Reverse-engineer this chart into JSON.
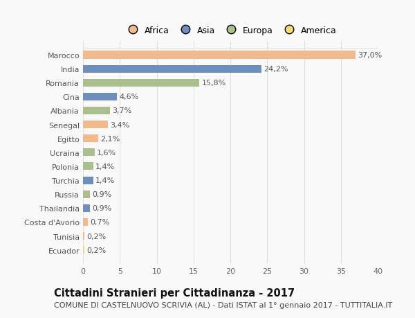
{
  "countries": [
    "Marocco",
    "India",
    "Romania",
    "Cina",
    "Albania",
    "Senegal",
    "Egitto",
    "Ucraina",
    "Polonia",
    "Turchia",
    "Russia",
    "Thailandia",
    "Costa d'Avorio",
    "Tunisia",
    "Ecuador"
  ],
  "values": [
    37.0,
    24.2,
    15.8,
    4.6,
    3.7,
    3.4,
    2.1,
    1.6,
    1.4,
    1.4,
    0.9,
    0.9,
    0.7,
    0.2,
    0.2
  ],
  "labels": [
    "37,0%",
    "24,2%",
    "15,8%",
    "4,6%",
    "3,7%",
    "3,4%",
    "2,1%",
    "1,6%",
    "1,4%",
    "1,4%",
    "0,9%",
    "0,9%",
    "0,7%",
    "0,2%",
    "0,2%"
  ],
  "continents": [
    "Africa",
    "Asia",
    "Europa",
    "Asia",
    "Europa",
    "Africa",
    "Africa",
    "Europa",
    "Europa",
    "Asia",
    "Europa",
    "Asia",
    "Africa",
    "Africa",
    "America"
  ],
  "colors": {
    "Africa": "#F2BA8C",
    "Asia": "#6E8EC0",
    "Europa": "#ABBE8E",
    "America": "#F5D87A"
  },
  "legend_order": [
    "Africa",
    "Asia",
    "Europa",
    "America"
  ],
  "title": "Cittadini Stranieri per Cittadinanza - 2017",
  "subtitle": "COMUNE DI CASTELNUOVO SCRIVIA (AL) - Dati ISTAT al 1° gennaio 2017 - TUTTITALIA.IT",
  "xlim": [
    0,
    40
  ],
  "xticks": [
    0,
    5,
    10,
    15,
    20,
    25,
    30,
    35,
    40
  ],
  "background_color": "#f9f9f9",
  "grid_color": "#e0e0e0",
  "title_fontsize": 10.5,
  "subtitle_fontsize": 8,
  "label_fontsize": 8,
  "tick_fontsize": 8,
  "bar_height": 0.55
}
